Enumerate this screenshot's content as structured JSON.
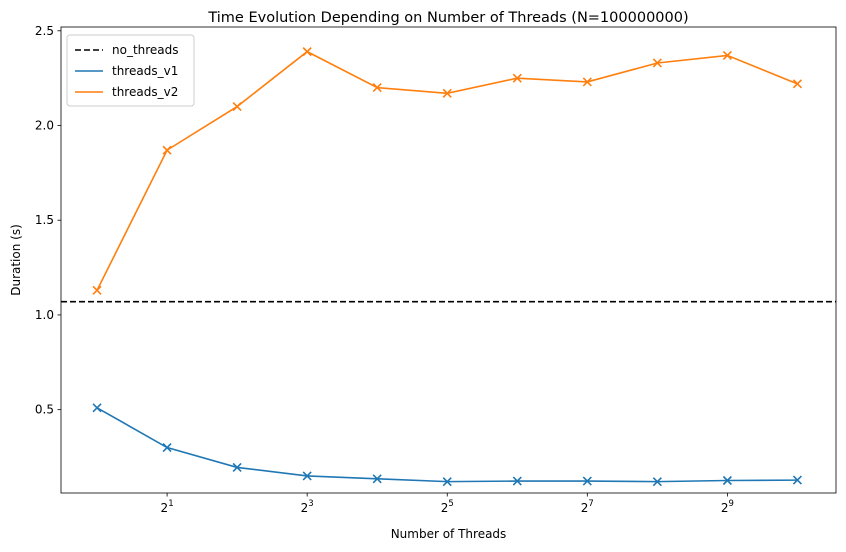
{
  "chart_data": {
    "type": "line",
    "title": "Time Evolution Depending on Number of Threads (N=100000000)",
    "xlabel": "Number of Threads",
    "ylabel": "Duration (s)",
    "x_scale": "log2",
    "x": [
      1,
      2,
      4,
      8,
      16,
      32,
      64,
      128,
      256,
      512,
      1024
    ],
    "xlim": [
      0.7,
      1500
    ],
    "ylim": [
      0.06,
      2.52
    ],
    "x_ticks": [
      {
        "value": 2,
        "base": "2",
        "exp": "1"
      },
      {
        "value": 8,
        "base": "2",
        "exp": "3"
      },
      {
        "value": 32,
        "base": "2",
        "exp": "5"
      },
      {
        "value": 128,
        "base": "2",
        "exp": "7"
      },
      {
        "value": 512,
        "base": "2",
        "exp": "9"
      }
    ],
    "y_ticks": [
      "0.5",
      "1.0",
      "1.5",
      "2.0",
      "2.5"
    ],
    "grid": false,
    "legend_position": "top-left",
    "hlines": [
      {
        "name": "no_threads",
        "y": 1.07,
        "color": "#000000",
        "style": "dashed"
      }
    ],
    "series": [
      {
        "name": "threads_v1",
        "color": "#1f77b4",
        "marker": "x",
        "values": [
          0.51,
          0.3,
          0.195,
          0.15,
          0.135,
          0.12,
          0.123,
          0.123,
          0.12,
          0.126,
          0.128
        ]
      },
      {
        "name": "threads_v2",
        "color": "#ff7f0e",
        "marker": "x",
        "values": [
          1.13,
          1.87,
          2.1,
          2.39,
          2.2,
          2.17,
          2.25,
          2.23,
          2.33,
          2.37,
          2.22
        ]
      }
    ]
  }
}
